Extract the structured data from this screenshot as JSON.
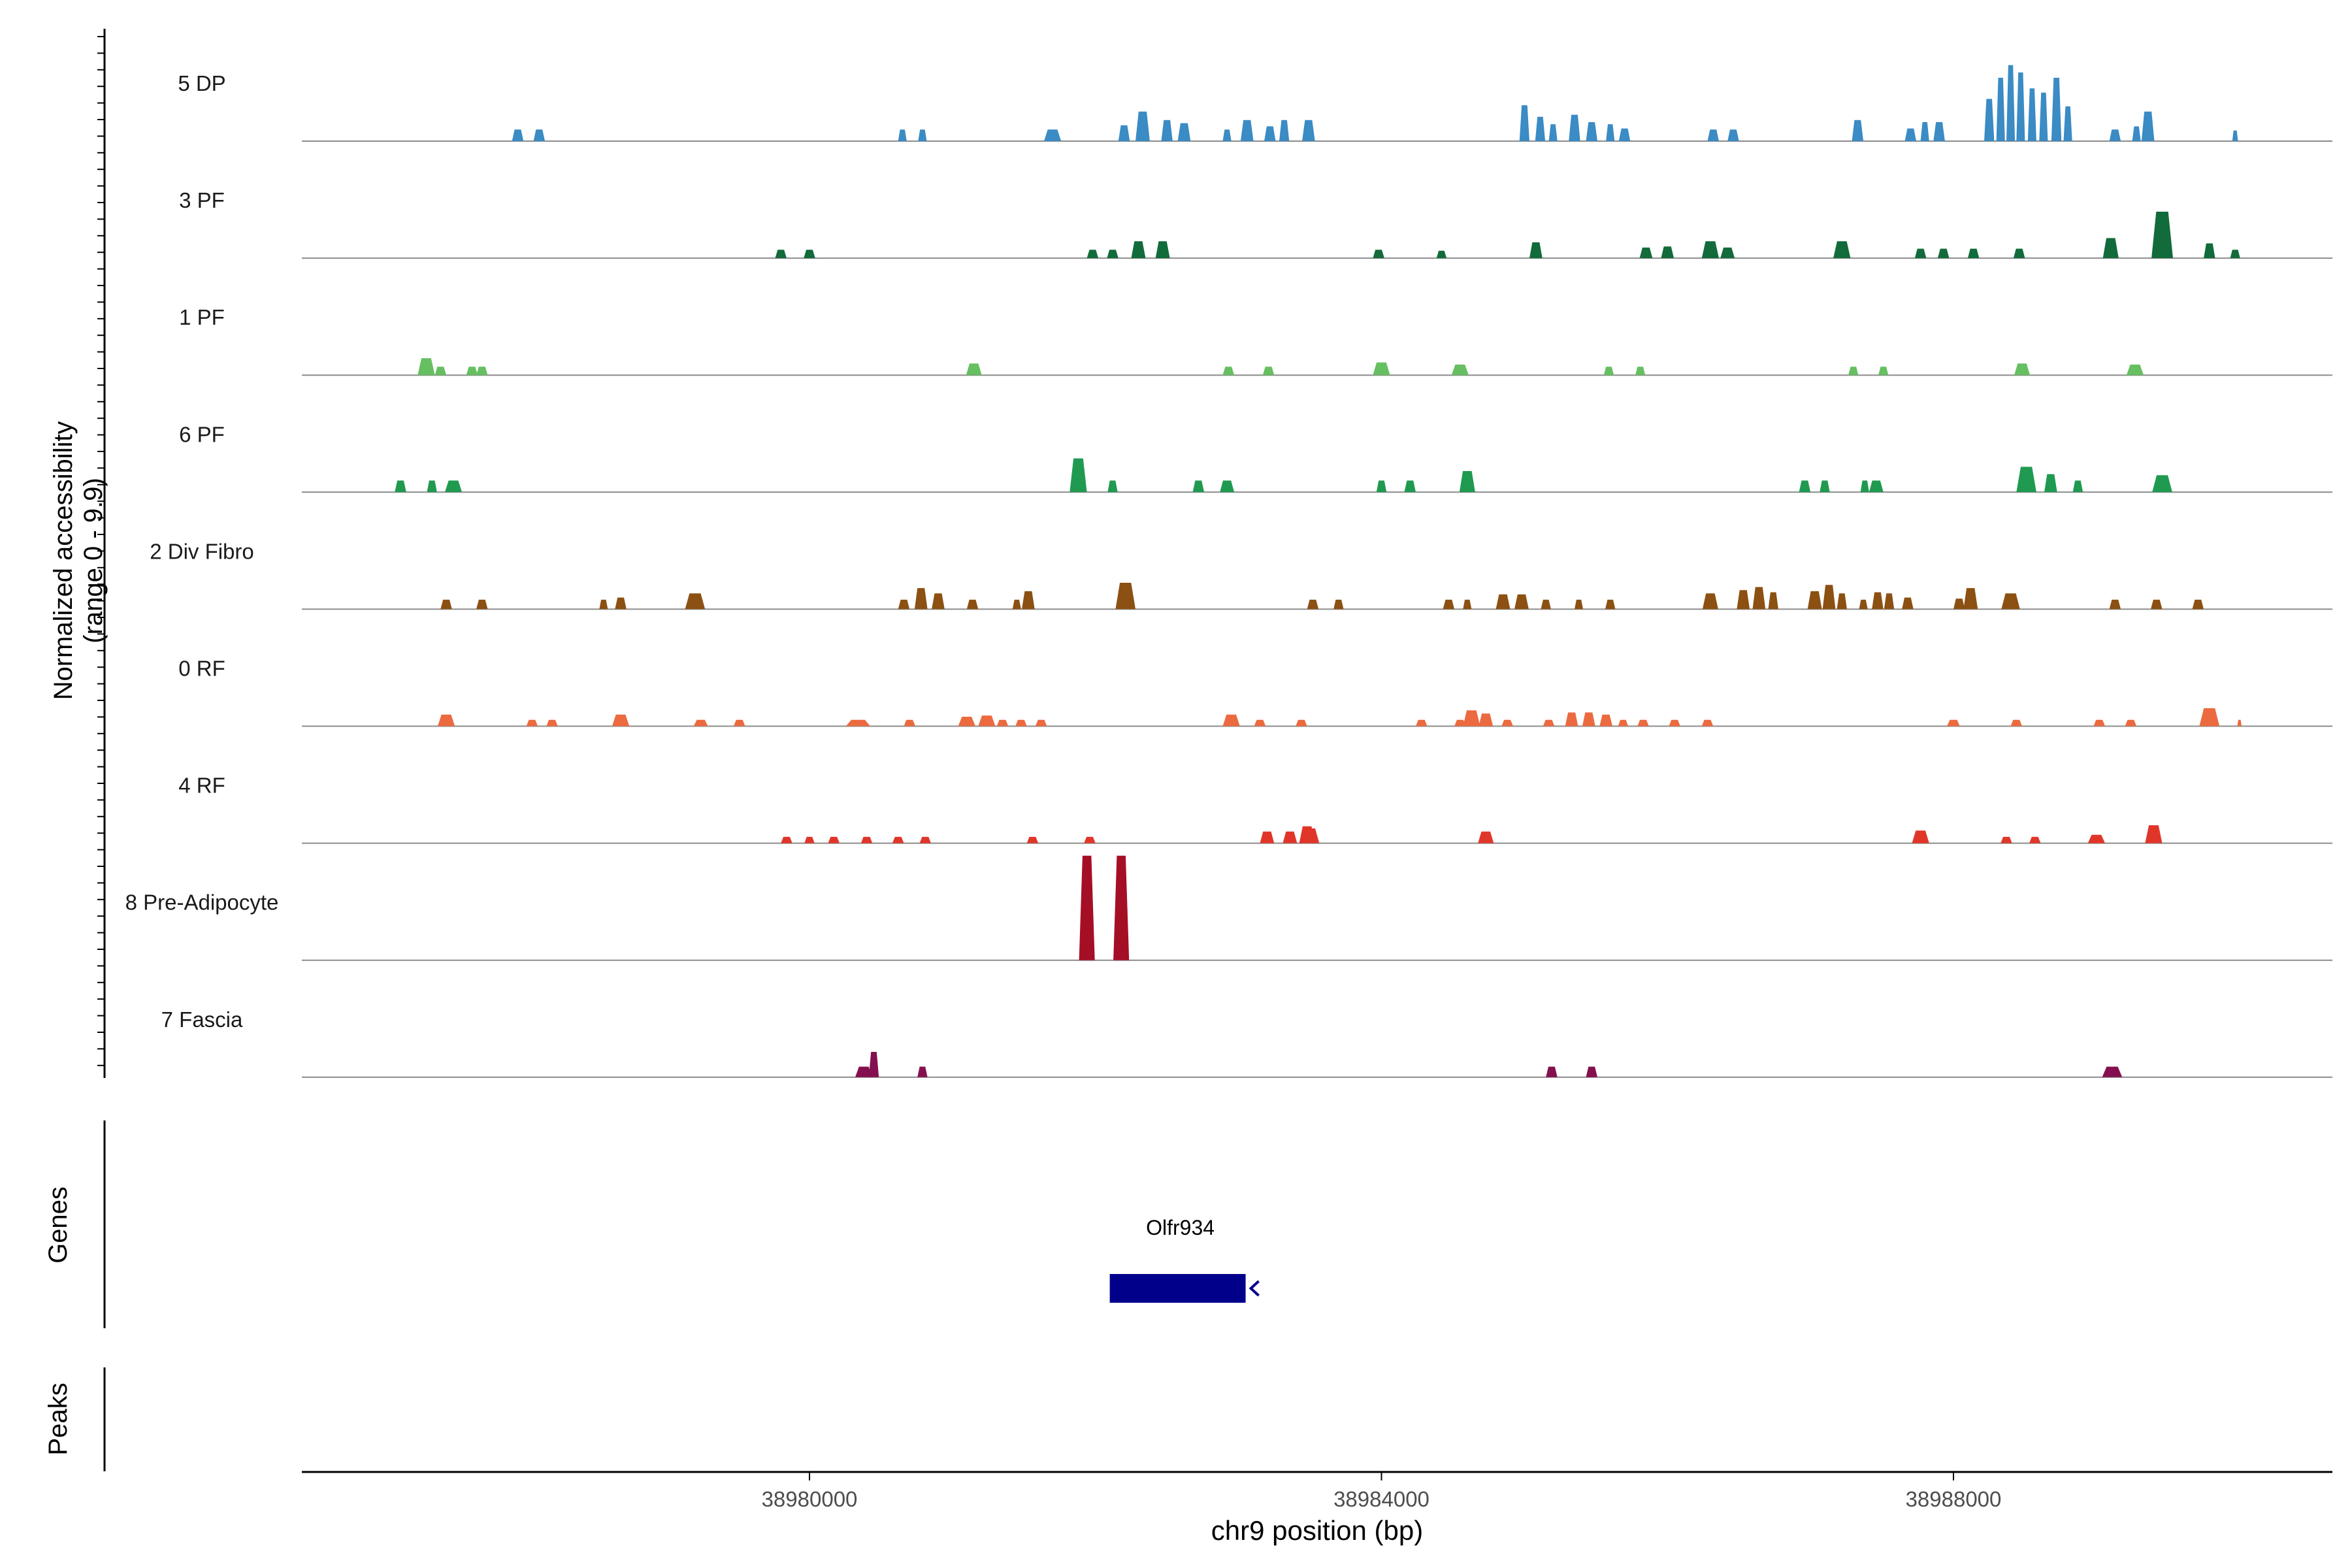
{
  "chart_data": {
    "type": "area",
    "title": "",
    "ylabel": "Normalized accessibility (range 0 - 9.9)",
    "ylabel_lines": [
      "Normalized accessibility",
      "(range 0 - 9.9)"
    ],
    "xlabel": "chr9 position (bp)",
    "y_range": [
      0,
      9.9
    ],
    "xlim": [
      38976450,
      38990650
    ],
    "x_ticks": [
      38980000,
      38984000,
      38988000
    ],
    "x_tick_labels": [
      "38980000",
      "38984000",
      "38988000"
    ],
    "panels": {
      "genes": "Genes",
      "peaks": "Peaks"
    },
    "series": [
      {
        "name": "5 DP",
        "color": "#3b8bc4",
        "peaks": [
          [
            38977960,
            1.1,
            80
          ],
          [
            38978110,
            1.1,
            80
          ],
          [
            38980650,
            1.1,
            60
          ],
          [
            38980790,
            1.1,
            60
          ],
          [
            38981700,
            1.1,
            120
          ],
          [
            38982200,
            1.5,
            80
          ],
          [
            38982330,
            2.8,
            100
          ],
          [
            38982500,
            2.0,
            80
          ],
          [
            38982620,
            1.7,
            90
          ],
          [
            38982920,
            1.1,
            60
          ],
          [
            38983060,
            2.0,
            90
          ],
          [
            38983220,
            1.4,
            80
          ],
          [
            38983320,
            2.0,
            70
          ],
          [
            38983490,
            2.0,
            90
          ],
          [
            38985000,
            3.4,
            70
          ],
          [
            38985110,
            2.3,
            70
          ],
          [
            38985200,
            1.6,
            60
          ],
          [
            38985350,
            2.5,
            80
          ],
          [
            38985470,
            1.8,
            80
          ],
          [
            38985600,
            1.6,
            60
          ],
          [
            38985700,
            1.2,
            80
          ],
          [
            38986320,
            1.1,
            80
          ],
          [
            38986460,
            1.1,
            80
          ],
          [
            38987330,
            2.0,
            80
          ],
          [
            38987700,
            1.2,
            80
          ],
          [
            38987800,
            1.8,
            60
          ],
          [
            38987900,
            1.8,
            80
          ],
          [
            38988250,
            4.0,
            70
          ],
          [
            38988330,
            6.0,
            60
          ],
          [
            38988400,
            7.2,
            60
          ],
          [
            38988470,
            6.5,
            60
          ],
          [
            38988550,
            5.0,
            60
          ],
          [
            38988630,
            4.6,
            60
          ],
          [
            38988720,
            6.0,
            70
          ],
          [
            38988800,
            3.3,
            60
          ],
          [
            38989130,
            1.1,
            80
          ],
          [
            38989280,
            1.4,
            60
          ],
          [
            38989360,
            2.8,
            90
          ],
          [
            38989970,
            1.0,
            40
          ]
        ]
      },
      {
        "name": "3 PF",
        "color": "#126b3a",
        "peaks": [
          [
            38979800,
            0.8,
            80
          ],
          [
            38980000,
            0.8,
            80
          ],
          [
            38981980,
            0.8,
            80
          ],
          [
            38982120,
            0.8,
            80
          ],
          [
            38982300,
            1.6,
            100
          ],
          [
            38982470,
            1.6,
            100
          ],
          [
            38983980,
            0.8,
            80
          ],
          [
            38984420,
            0.7,
            70
          ],
          [
            38985080,
            1.5,
            90
          ],
          [
            38985850,
            1.0,
            90
          ],
          [
            38986000,
            1.1,
            90
          ],
          [
            38986300,
            1.6,
            120
          ],
          [
            38986420,
            1.0,
            100
          ],
          [
            38987220,
            1.6,
            120
          ],
          [
            38987770,
            0.9,
            80
          ],
          [
            38987930,
            0.9,
            80
          ],
          [
            38988140,
            0.9,
            80
          ],
          [
            38988460,
            0.9,
            80
          ],
          [
            38989100,
            1.9,
            110
          ],
          [
            38989460,
            4.4,
            150
          ],
          [
            38989790,
            1.4,
            80
          ],
          [
            38989970,
            0.8,
            70
          ]
        ]
      },
      {
        "name": "1 PF",
        "color": "#66bf60",
        "peaks": [
          [
            38977320,
            1.6,
            120
          ],
          [
            38977420,
            0.8,
            80
          ],
          [
            38977640,
            0.8,
            80
          ],
          [
            38977710,
            0.8,
            80
          ],
          [
            38981150,
            1.1,
            110
          ],
          [
            38982930,
            0.8,
            80
          ],
          [
            38983210,
            0.8,
            80
          ],
          [
            38984000,
            1.2,
            120
          ],
          [
            38984550,
            1.0,
            120
          ],
          [
            38985590,
            0.8,
            70
          ],
          [
            38985810,
            0.8,
            70
          ],
          [
            38987300,
            0.8,
            70
          ],
          [
            38987510,
            0.8,
            70
          ],
          [
            38988480,
            1.1,
            110
          ],
          [
            38989270,
            1.0,
            120
          ]
        ]
      },
      {
        "name": "6 PF",
        "color": "#1f9a50",
        "peaks": [
          [
            38977140,
            1.1,
            80
          ],
          [
            38977360,
            1.1,
            70
          ],
          [
            38977510,
            1.1,
            120
          ],
          [
            38981880,
            3.2,
            120
          ],
          [
            38982120,
            1.1,
            70
          ],
          [
            38982720,
            1.1,
            80
          ],
          [
            38982920,
            1.1,
            100
          ],
          [
            38984000,
            1.1,
            70
          ],
          [
            38984200,
            1.1,
            80
          ],
          [
            38984600,
            2.0,
            110
          ],
          [
            38986960,
            1.1,
            80
          ],
          [
            38987100,
            1.1,
            70
          ],
          [
            38987380,
            1.1,
            60
          ],
          [
            38987460,
            1.1,
            100
          ],
          [
            38988510,
            2.4,
            140
          ],
          [
            38988680,
            1.7,
            90
          ],
          [
            38988870,
            1.1,
            70
          ],
          [
            38989460,
            1.6,
            140
          ]
        ]
      },
      {
        "name": "2 Div Fibro",
        "color": "#8b5012",
        "peaks": [
          [
            38977460,
            0.9,
            80
          ],
          [
            38977710,
            0.9,
            80
          ],
          [
            38978560,
            0.9,
            60
          ],
          [
            38978680,
            1.1,
            80
          ],
          [
            38979200,
            1.5,
            140
          ],
          [
            38980660,
            0.9,
            80
          ],
          [
            38980780,
            2.0,
            90
          ],
          [
            38980900,
            1.5,
            90
          ],
          [
            38981140,
            0.9,
            80
          ],
          [
            38981450,
            0.9,
            60
          ],
          [
            38981530,
            1.7,
            90
          ],
          [
            38982210,
            2.5,
            140
          ],
          [
            38983520,
            0.9,
            80
          ],
          [
            38983700,
            0.9,
            70
          ],
          [
            38984470,
            0.9,
            80
          ],
          [
            38984600,
            0.9,
            60
          ],
          [
            38984850,
            1.4,
            100
          ],
          [
            38984980,
            1.4,
            100
          ],
          [
            38985150,
            0.9,
            70
          ],
          [
            38985380,
            0.9,
            60
          ],
          [
            38985600,
            0.9,
            70
          ],
          [
            38986300,
            1.5,
            110
          ],
          [
            38986530,
            1.8,
            90
          ],
          [
            38986640,
            2.1,
            90
          ],
          [
            38986740,
            1.6,
            70
          ],
          [
            38987030,
            1.7,
            100
          ],
          [
            38987130,
            2.3,
            90
          ],
          [
            38987220,
            1.5,
            70
          ],
          [
            38987370,
            0.9,
            60
          ],
          [
            38987470,
            1.6,
            80
          ],
          [
            38987550,
            1.5,
            70
          ],
          [
            38987680,
            1.1,
            80
          ],
          [
            38988040,
            1.0,
            80
          ],
          [
            38988120,
            2.0,
            100
          ],
          [
            38988400,
            1.5,
            130
          ],
          [
            38989130,
            0.9,
            80
          ],
          [
            38989420,
            0.9,
            80
          ],
          [
            38989710,
            0.9,
            80
          ]
        ]
      },
      {
        "name": "0 RF",
        "color": "#ec6a3f",
        "peaks": [
          [
            38977460,
            1.1,
            120
          ],
          [
            38978060,
            0.6,
            80
          ],
          [
            38978200,
            0.6,
            80
          ],
          [
            38978680,
            1.1,
            120
          ],
          [
            38979240,
            0.6,
            100
          ],
          [
            38979510,
            0.6,
            80
          ],
          [
            38980340,
            0.6,
            170
          ],
          [
            38980700,
            0.6,
            80
          ],
          [
            38981100,
            0.9,
            120
          ],
          [
            38981240,
            1.0,
            120
          ],
          [
            38981350,
            0.6,
            80
          ],
          [
            38981480,
            0.6,
            80
          ],
          [
            38981620,
            0.6,
            80
          ],
          [
            38982950,
            1.1,
            120
          ],
          [
            38983150,
            0.6,
            80
          ],
          [
            38983440,
            0.6,
            80
          ],
          [
            38984280,
            0.6,
            80
          ],
          [
            38984550,
            0.6,
            80
          ],
          [
            38984630,
            1.5,
            120
          ],
          [
            38984730,
            1.2,
            100
          ],
          [
            38984880,
            0.6,
            80
          ],
          [
            38985170,
            0.6,
            80
          ],
          [
            38985330,
            1.3,
            90
          ],
          [
            38985450,
            1.3,
            90
          ],
          [
            38985570,
            1.1,
            90
          ],
          [
            38985690,
            0.6,
            70
          ],
          [
            38985830,
            0.6,
            80
          ],
          [
            38986050,
            0.6,
            80
          ],
          [
            38986280,
            0.6,
            80
          ],
          [
            38988000,
            0.6,
            90
          ],
          [
            38988440,
            0.6,
            80
          ],
          [
            38989020,
            0.6,
            80
          ],
          [
            38989240,
            0.6,
            80
          ],
          [
            38989790,
            1.7,
            140
          ],
          [
            38990000,
            0.6,
            30
          ]
        ]
      },
      {
        "name": "4 RF",
        "color": "#e0362a",
        "peaks": [
          [
            38979840,
            0.6,
            80
          ],
          [
            38980000,
            0.6,
            70
          ],
          [
            38980170,
            0.6,
            80
          ],
          [
            38980400,
            0.6,
            80
          ],
          [
            38980620,
            0.6,
            80
          ],
          [
            38980810,
            0.6,
            80
          ],
          [
            38981560,
            0.6,
            80
          ],
          [
            38981960,
            0.6,
            80
          ],
          [
            38983200,
            1.1,
            100
          ],
          [
            38983360,
            1.1,
            100
          ],
          [
            38983480,
            1.6,
            110
          ],
          [
            38983500,
            1.4,
            130
          ],
          [
            38984730,
            1.1,
            110
          ],
          [
            38987770,
            1.2,
            120
          ],
          [
            38988370,
            0.6,
            80
          ],
          [
            38988570,
            0.6,
            80
          ],
          [
            38989000,
            0.8,
            120
          ],
          [
            38989400,
            1.7,
            120
          ]
        ]
      },
      {
        "name": "8 Pre-Adipocyte",
        "color": "#a50f26",
        "peaks": [
          [
            38981940,
            9.9,
            110
          ],
          [
            38982180,
            9.9,
            110
          ]
        ]
      },
      {
        "name": "7 Fascia",
        "color": "#84104f",
        "peaks": [
          [
            38980380,
            1.0,
            120
          ],
          [
            38980450,
            2.4,
            70
          ],
          [
            38980790,
            1.0,
            70
          ],
          [
            38985190,
            1.0,
            80
          ],
          [
            38985470,
            1.0,
            80
          ],
          [
            38989110,
            1.0,
            140
          ]
        ]
      }
    ],
    "genes": [
      {
        "name": "Olfr934",
        "start": 38982100,
        "end": 38983050,
        "strand": "-",
        "color": "#00008b"
      }
    ]
  }
}
